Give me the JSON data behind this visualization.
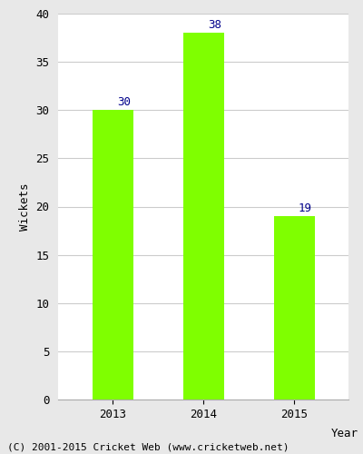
{
  "categories": [
    "2013",
    "2014",
    "2015"
  ],
  "values": [
    30,
    38,
    19
  ],
  "bar_color": "#7FFF00",
  "bar_edge_color": "#7FFF00",
  "label_color": "#00008B",
  "xlabel": "Year",
  "ylabel": "Wickets",
  "ylim": [
    0,
    40
  ],
  "yticks": [
    0,
    5,
    10,
    15,
    20,
    25,
    30,
    35,
    40
  ],
  "grid_color": "#cccccc",
  "figure_bg_color": "#e8e8e8",
  "plot_bg_color": "#ffffff",
  "footer_text": "(C) 2001-2015 Cricket Web (www.cricketweb.net)",
  "bar_width": 0.45,
  "label_fontsize": 9,
  "axis_label_fontsize": 9,
  "tick_fontsize": 9,
  "footer_fontsize": 8
}
